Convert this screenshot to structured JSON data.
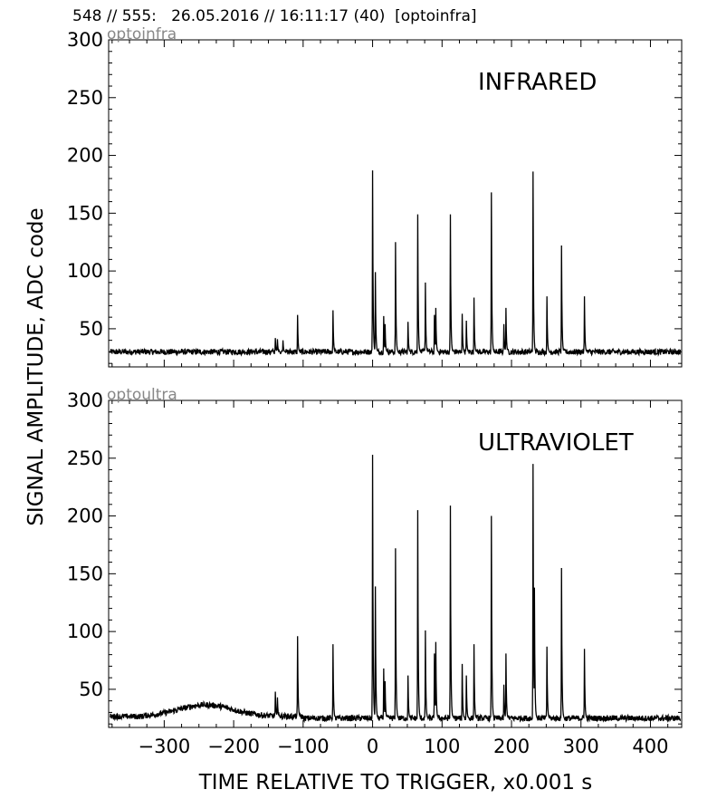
{
  "header": "548 // 555:   26.05.2016 // 16:11:17 (40)  [optoinfra]",
  "ylabel": "SIGNAL AMPLITUDE,  ADC code",
  "xlabel": "TIME RELATIVE TO TRIGGER,   x0.001 s",
  "colors": {
    "line": "#000000",
    "panel_tag": "#888888"
  },
  "chart_data": [
    {
      "type": "line",
      "tag": "optoinfra",
      "title": "INFRARED",
      "xlim": [
        -380,
        445
      ],
      "ylim": [
        17,
        300
      ],
      "yticks": [
        50,
        100,
        150,
        200,
        250,
        300
      ],
      "xticks": [
        -300,
        -200,
        -100,
        0,
        100,
        200,
        300,
        400
      ],
      "show_xtick_labels": false,
      "baseline": 30,
      "peaks": [
        {
          "x": -140,
          "y": 42
        },
        {
          "x": -137,
          "y": 41
        },
        {
          "x": -129,
          "y": 40
        },
        {
          "x": -108,
          "y": 62
        },
        {
          "x": -57,
          "y": 66
        },
        {
          "x": 0,
          "y": 187
        },
        {
          "x": 4,
          "y": 99
        },
        {
          "x": 16,
          "y": 61
        },
        {
          "x": 18,
          "y": 54
        },
        {
          "x": 33,
          "y": 125
        },
        {
          "x": 51,
          "y": 56
        },
        {
          "x": 65,
          "y": 149
        },
        {
          "x": 76,
          "y": 90
        },
        {
          "x": 89,
          "y": 62
        },
        {
          "x": 91,
          "y": 68
        },
        {
          "x": 112,
          "y": 149
        },
        {
          "x": 129,
          "y": 63
        },
        {
          "x": 135,
          "y": 57
        },
        {
          "x": 146,
          "y": 77
        },
        {
          "x": 171,
          "y": 168
        },
        {
          "x": 189,
          "y": 54
        },
        {
          "x": 192,
          "y": 68
        },
        {
          "x": 231,
          "y": 186
        },
        {
          "x": 251,
          "y": 78
        },
        {
          "x": 272,
          "y": 122
        },
        {
          "x": 305,
          "y": 78
        }
      ]
    },
    {
      "type": "line",
      "tag": "optoultra",
      "title": "ULTRAVIOLET",
      "xlim": [
        -380,
        445
      ],
      "ylim": [
        17,
        300
      ],
      "yticks": [
        50,
        100,
        150,
        200,
        250,
        300
      ],
      "xticks": [
        -300,
        -200,
        -100,
        0,
        100,
        200,
        300,
        400
      ],
      "show_xtick_labels": true,
      "baseline": 25,
      "peaks": [
        {
          "x": -140,
          "y": 48
        },
        {
          "x": -137,
          "y": 43
        },
        {
          "x": -108,
          "y": 96
        },
        {
          "x": -57,
          "y": 89
        },
        {
          "x": 0,
          "y": 253
        },
        {
          "x": 4,
          "y": 139
        },
        {
          "x": 16,
          "y": 68
        },
        {
          "x": 18,
          "y": 57
        },
        {
          "x": 33,
          "y": 172
        },
        {
          "x": 51,
          "y": 62
        },
        {
          "x": 65,
          "y": 205
        },
        {
          "x": 76,
          "y": 101
        },
        {
          "x": 89,
          "y": 81
        },
        {
          "x": 91,
          "y": 91
        },
        {
          "x": 112,
          "y": 209
        },
        {
          "x": 129,
          "y": 72
        },
        {
          "x": 135,
          "y": 62
        },
        {
          "x": 146,
          "y": 89
        },
        {
          "x": 171,
          "y": 200
        },
        {
          "x": 189,
          "y": 54
        },
        {
          "x": 192,
          "y": 81
        },
        {
          "x": 231,
          "y": 245
        },
        {
          "x": 233,
          "y": 138
        },
        {
          "x": 251,
          "y": 87
        },
        {
          "x": 272,
          "y": 155
        },
        {
          "x": 305,
          "y": 85
        }
      ]
    }
  ]
}
